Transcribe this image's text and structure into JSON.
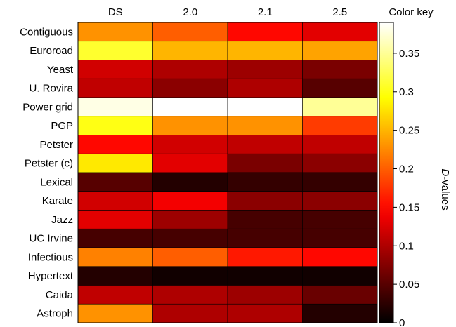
{
  "chart_data": {
    "type": "heatmap",
    "columns": [
      "DS",
      "2.0",
      "2.1",
      "2.5"
    ],
    "rows": [
      "Contiguous",
      "Euroroad",
      "Yeast",
      "U. Rovira",
      "Power grid",
      "PGP",
      "Petster",
      "Petster (c)",
      "Lexical",
      "Karate",
      "Jazz",
      "UC Irvine",
      "Infectious",
      "Hypertext",
      "Caida",
      "Astroph"
    ],
    "values": [
      [
        0.23,
        0.2,
        0.15,
        0.13
      ],
      [
        0.31,
        0.25,
        0.25,
        0.24
      ],
      [
        0.12,
        0.1,
        0.09,
        0.07
      ],
      [
        0.11,
        0.08,
        0.1,
        0.05
      ],
      [
        0.38,
        0.39,
        0.39,
        0.35
      ],
      [
        0.3,
        0.23,
        0.23,
        0.18
      ],
      [
        0.15,
        0.12,
        0.11,
        0.11
      ],
      [
        0.28,
        0.13,
        0.07,
        0.08
      ],
      [
        0.05,
        0.02,
        0.03,
        0.03
      ],
      [
        0.12,
        0.14,
        0.08,
        0.08
      ],
      [
        0.13,
        0.09,
        0.04,
        0.04
      ],
      [
        0.04,
        0.04,
        0.04,
        0.04
      ],
      [
        0.22,
        0.2,
        0.16,
        0.15
      ],
      [
        0.02,
        0.01,
        0.01,
        0.01
      ],
      [
        0.11,
        0.1,
        0.09,
        0.06
      ],
      [
        0.23,
        0.1,
        0.1,
        0.02
      ]
    ],
    "colormap": "hot",
    "color_key": {
      "title": "Color key",
      "label": "D-values",
      "range": [
        0,
        0.39
      ],
      "ticks": [
        0,
        0.05,
        0.1,
        0.15,
        0.2,
        0.25,
        0.3,
        0.35
      ],
      "tick_labels": [
        "0",
        "0.05",
        "0.1",
        "0.15",
        "0.2",
        "0.25",
        "0.3",
        "0.35"
      ]
    }
  }
}
